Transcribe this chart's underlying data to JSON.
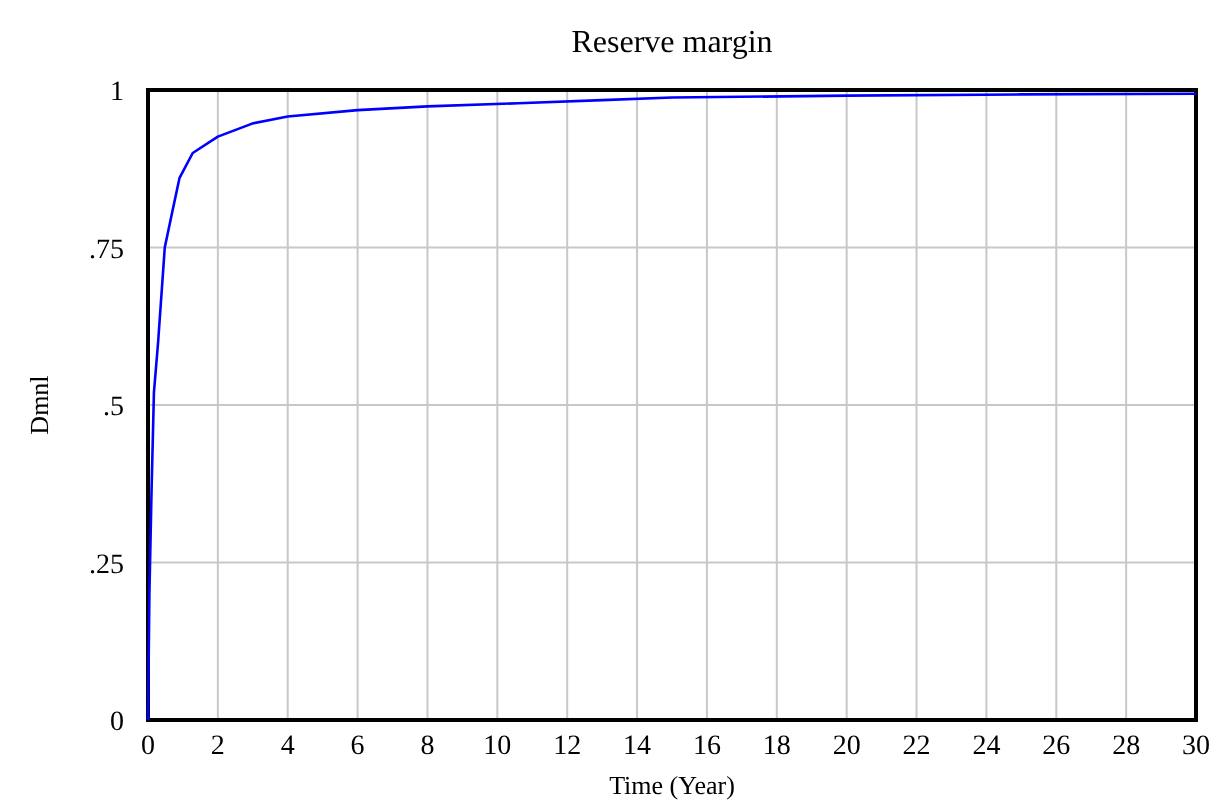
{
  "chart_data": {
    "type": "line",
    "title": "Reserve margin",
    "xlabel": "Time (Year)",
    "ylabel": "Dmnl",
    "x": [
      0,
      0.02,
      0.04,
      0.1,
      0.17,
      0.29,
      0.48,
      0.67,
      0.9,
      1.28,
      2,
      3,
      4,
      6,
      8,
      10.6,
      13,
      15,
      20,
      25,
      30
    ],
    "series": [
      {
        "color": "#0000ff",
        "values": [
          0,
          0.1,
          0.2,
          0.36,
          0.52,
          0.6,
          0.75,
          0.8,
          0.86,
          0.9,
          0.926,
          0.947,
          0.958,
          0.968,
          0.974,
          0.979,
          0.984,
          0.988,
          0.991,
          0.993,
          0.994
        ]
      }
    ],
    "xlim": [
      0,
      30
    ],
    "xticks": [
      0,
      2,
      4,
      6,
      8,
      10,
      12,
      14,
      16,
      18,
      20,
      22,
      24,
      26,
      28,
      30
    ],
    "ylim": [
      0,
      1
    ],
    "yticks": [
      0,
      {
        "value": 0.25,
        "label": ".25"
      },
      {
        "value": 0.5,
        "label": ".5"
      },
      {
        "value": 0.75,
        "label": ".75"
      },
      1
    ],
    "grid": true,
    "marker": "none",
    "line_style": "solid"
  }
}
